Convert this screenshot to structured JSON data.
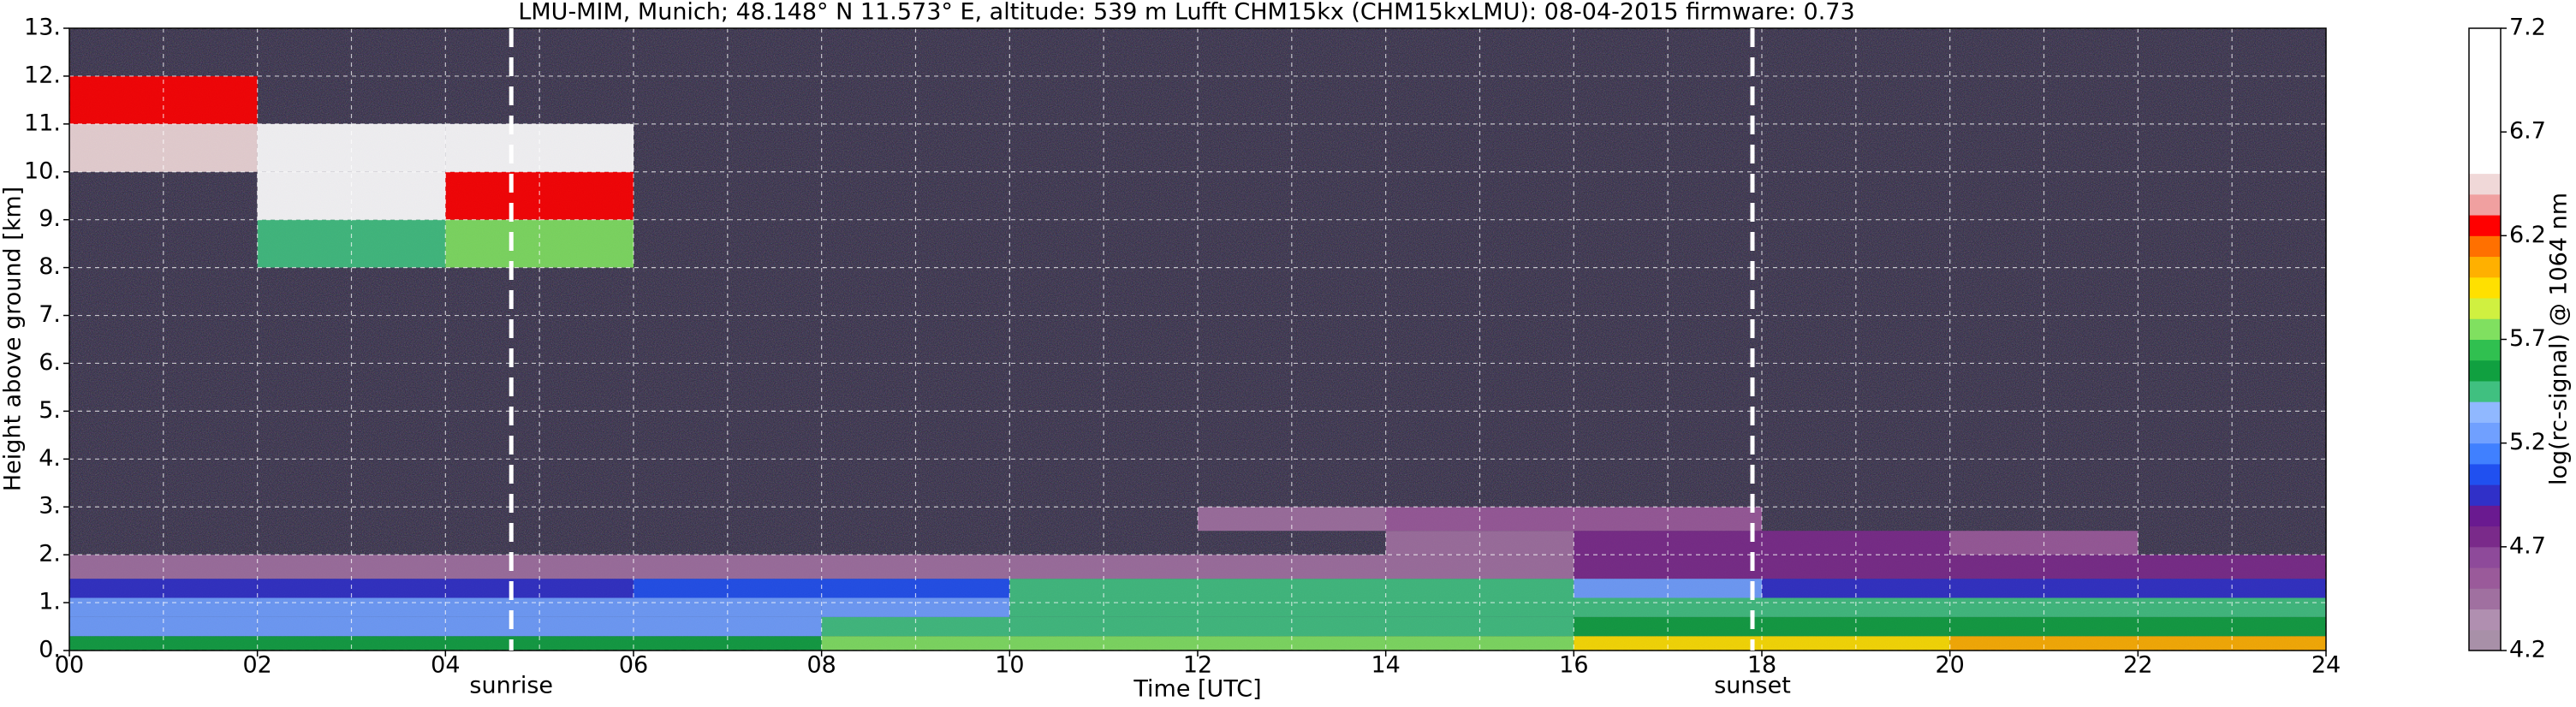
{
  "chart_data": {
    "type": "heatmap",
    "title": "LMU-MIM, Munich; 48.148° N 11.573° E, altitude: 539 m    Lufft CHM15kx (CHM15kxLMU): 08-04-2015    firmware: 0.73",
    "xlabel": "Time [UTC]",
    "ylabel": "Height above ground [km]",
    "xlim": [
      0,
      24
    ],
    "ylim": [
      0,
      13
    ],
    "xticks": [
      {
        "value": 0,
        "label": "00"
      },
      {
        "value": 2,
        "label": "02"
      },
      {
        "value": 4,
        "label": "04"
      },
      {
        "value": 6,
        "label": "06"
      },
      {
        "value": 8,
        "label": "08"
      },
      10,
      12,
      14,
      16,
      18,
      20,
      22,
      24
    ],
    "x_minor_ticks": [
      1,
      3,
      5,
      7,
      9,
      11,
      13,
      15,
      17,
      19,
      21,
      23
    ],
    "yticks": [
      {
        "value": 0,
        "label": "0."
      },
      {
        "value": 1,
        "label": "1."
      },
      {
        "value": 2,
        "label": "2."
      },
      {
        "value": 3,
        "label": "3."
      },
      {
        "value": 4,
        "label": "4."
      },
      {
        "value": 5,
        "label": "5."
      },
      {
        "value": 6,
        "label": "6."
      },
      {
        "value": 7,
        "label": "7."
      },
      {
        "value": 8,
        "label": "8."
      },
      {
        "value": 9,
        "label": "9."
      },
      {
        "value": 10,
        "label": "10."
      },
      {
        "value": 11,
        "label": "11."
      },
      {
        "value": 12,
        "label": "12."
      },
      {
        "value": 13,
        "label": "13."
      }
    ],
    "grid": true,
    "background": "#2b2340",
    "x_bins": [
      0,
      2,
      4,
      6,
      8,
      10,
      12,
      14,
      16,
      18,
      20,
      22,
      24
    ],
    "y_bins": [
      0,
      0.3,
      0.7,
      1.1,
      1.5,
      2,
      2.5,
      3,
      4,
      5,
      6,
      7,
      8,
      9,
      10,
      11,
      12,
      13
    ],
    "z": [
      [
        5.6,
        5.6,
        5.6,
        5.6,
        5.7,
        5.8,
        5.8,
        5.8,
        5.9,
        5.9,
        6.0,
        6.1
      ],
      [
        5.3,
        5.3,
        5.3,
        5.3,
        5.4,
        5.45,
        5.5,
        5.5,
        5.55,
        5.55,
        5.55,
        5.55
      ],
      [
        5.2,
        5.2,
        5.2,
        5.2,
        5.3,
        5.4,
        5.4,
        5.5,
        5.5,
        5.5,
        5.5,
        5.5
      ],
      [
        5.0,
        5.0,
        5.0,
        5.05,
        5.1,
        5.4,
        5.45,
        5.45,
        5.2,
        5.0,
        4.9,
        4.9
      ],
      [
        4.4,
        4.5,
        4.5,
        4.4,
        4.4,
        4.4,
        4.5,
        4.5,
        4.8,
        4.8,
        4.7,
        4.7
      ],
      [
        null,
        null,
        null,
        null,
        null,
        null,
        null,
        4.5,
        4.7,
        4.8,
        4.6,
        null
      ],
      [
        null,
        null,
        null,
        null,
        null,
        null,
        4.4,
        4.6,
        4.6,
        null,
        null,
        null
      ],
      [
        null,
        null,
        null,
        null,
        null,
        null,
        null,
        null,
        null,
        null,
        null,
        null
      ],
      [
        null,
        null,
        null,
        null,
        null,
        null,
        null,
        null,
        null,
        null,
        null,
        null
      ],
      [
        null,
        null,
        null,
        null,
        null,
        null,
        null,
        null,
        null,
        null,
        null,
        null
      ],
      [
        null,
        null,
        null,
        null,
        null,
        null,
        null,
        null,
        null,
        null,
        null,
        null
      ],
      [
        null,
        null,
        null,
        null,
        null,
        null,
        null,
        null,
        null,
        null,
        null,
        null
      ],
      [
        null,
        5.5,
        5.8,
        null,
        null,
        null,
        null,
        null,
        null,
        null,
        null,
        null
      ],
      [
        null,
        6.5,
        6.3,
        null,
        null,
        null,
        null,
        null,
        null,
        null,
        null,
        null
      ],
      [
        6.4,
        6.8,
        6.6,
        null,
        null,
        null,
        null,
        null,
        null,
        null,
        null,
        null
      ],
      [
        6.3,
        null,
        null,
        null,
        null,
        null,
        null,
        null,
        null,
        null,
        null,
        null
      ],
      [
        null,
        null,
        null,
        null,
        null,
        null,
        null,
        null,
        null,
        null,
        null,
        null
      ]
    ],
    "annotations": [
      {
        "text": "sunrise",
        "x": 4.7
      },
      {
        "text": "sunset",
        "x": 17.9
      }
    ],
    "colorbar": {
      "label": "log(rc-signal) @ 1064 nm",
      "lim": [
        4.2,
        7.2
      ],
      "ticks": [
        4.2,
        4.7,
        5.2,
        5.7,
        6.2,
        6.7,
        7.2
      ],
      "colors": [
        "#a890a8",
        "#b08fb0",
        "#a070a0",
        "#9a5a9a",
        "#8e4a9a",
        "#7a2a8a",
        "#6a1a90",
        "#3030c8",
        "#2050f0",
        "#4080ff",
        "#70a0ff",
        "#90b8ff",
        "#40c080",
        "#10a040",
        "#30c050",
        "#80e060",
        "#d0f040",
        "#ffe000",
        "#ffb000",
        "#ff7000",
        "#ff0000",
        "#f0a0a0",
        "#f0d8d8",
        "#ffffff",
        "#ffffff",
        "#ffffff",
        "#ffffff",
        "#ffffff",
        "#ffffff",
        "#ffffff"
      ]
    }
  }
}
